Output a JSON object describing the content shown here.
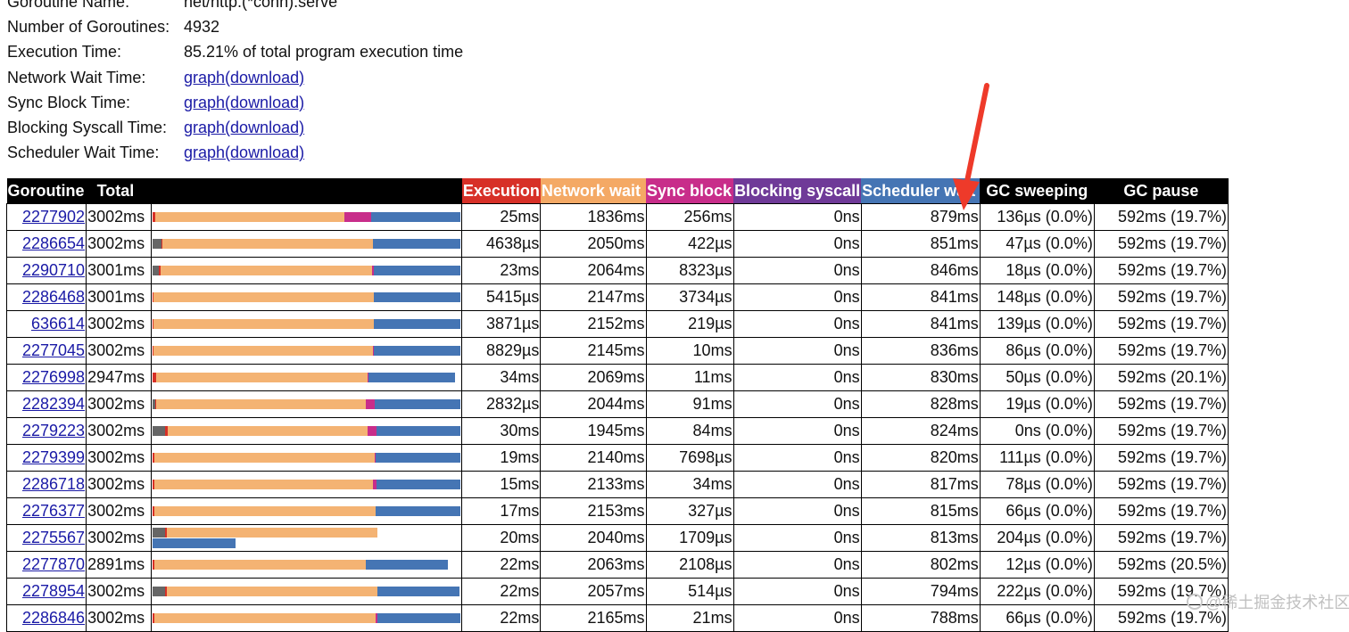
{
  "info": {
    "rows": [
      {
        "label": "Goroutine Name:",
        "value": "net/http.(*conn).serve",
        "link": false
      },
      {
        "label": "Number of Goroutines:",
        "value": "4932",
        "link": false
      },
      {
        "label": "Execution Time:",
        "value": "85.21% of total program execution time",
        "link": false
      },
      {
        "label": "Network Wait Time:",
        "graph": "graph",
        "download": "(download)",
        "link": true
      },
      {
        "label": "Sync Block Time:",
        "graph": "graph",
        "download": "(download)",
        "link": true
      },
      {
        "label": "Blocking Syscall Time:",
        "graph": "graph",
        "download": "(download)",
        "link": true
      },
      {
        "label": "Scheduler Wait Time:",
        "graph": "graph",
        "download": "(download)",
        "link": true
      }
    ]
  },
  "table": {
    "headers": [
      {
        "label": "Goroutine",
        "bg": "#000000"
      },
      {
        "label": "Total",
        "bg": "#000000"
      },
      {
        "label": "",
        "bg": "#000000"
      },
      {
        "label": "Execution",
        "bg": "#d73027"
      },
      {
        "label": "Network wait",
        "bg": "#f4a965"
      },
      {
        "label": "Sync block",
        "bg": "#c82d8a"
      },
      {
        "label": "Blocking syscall",
        "bg": "#6f3a98"
      },
      {
        "label": "Scheduler wait",
        "bg": "#4575b4"
      },
      {
        "label": "GC sweeping",
        "bg": "#000000"
      },
      {
        "label": "GC pause",
        "bg": "#000000"
      }
    ],
    "colors": {
      "gc": "#666666",
      "exec": "#d73027",
      "net": "#f4b373",
      "sync": "#c82d8a",
      "sched": "#4575b4"
    },
    "rows": [
      {
        "id": "2277902",
        "total": "3002ms",
        "exec": "25ms",
        "net": "1836ms",
        "sync": "256ms",
        "syscall": "0ns",
        "sched": "879ms",
        "sweep": "136µs (0.0%)",
        "pause": "592ms (19.7%)",
        "bar": [
          {
            "t": "exec",
            "w": 3
          },
          {
            "t": "net",
            "w": 212
          },
          {
            "t": "sync",
            "w": 30
          },
          {
            "t": "sched",
            "w": 100
          }
        ]
      },
      {
        "id": "2286654",
        "total": "3002ms",
        "exec": "4638µs",
        "net": "2050ms",
        "sync": "422µs",
        "syscall": "0ns",
        "sched": "851ms",
        "sweep": "47µs (0.0%)",
        "pause": "592ms (19.7%)",
        "bar": [
          {
            "t": "gc",
            "w": 10
          },
          {
            "t": "exec",
            "w": 1
          },
          {
            "t": "net",
            "w": 236
          },
          {
            "t": "sched",
            "w": 98
          }
        ]
      },
      {
        "id": "2290710",
        "total": "3001ms",
        "exec": "23ms",
        "net": "2064ms",
        "sync": "8323µs",
        "syscall": "0ns",
        "sched": "846ms",
        "sweep": "18µs (0.0%)",
        "pause": "592ms (19.7%)",
        "bar": [
          {
            "t": "gc",
            "w": 7
          },
          {
            "t": "exec",
            "w": 2
          },
          {
            "t": "net",
            "w": 237
          },
          {
            "t": "sync",
            "w": 2
          },
          {
            "t": "sched",
            "w": 97
          }
        ]
      },
      {
        "id": "2286468",
        "total": "3001ms",
        "exec": "5415µs",
        "net": "2147ms",
        "sync": "3734µs",
        "syscall": "0ns",
        "sched": "841ms",
        "sweep": "148µs (0.0%)",
        "pause": "592ms (19.7%)",
        "bar": [
          {
            "t": "exec",
            "w": 1
          },
          {
            "t": "net",
            "w": 247
          },
          {
            "t": "sched",
            "w": 97
          }
        ]
      },
      {
        "id": "636614",
        "total": "3002ms",
        "exec": "3871µs",
        "net": "2152ms",
        "sync": "219µs",
        "syscall": "0ns",
        "sched": "841ms",
        "sweep": "139µs (0.0%)",
        "pause": "592ms (19.7%)",
        "bar": [
          {
            "t": "exec",
            "w": 1
          },
          {
            "t": "net",
            "w": 247
          },
          {
            "t": "sched",
            "w": 97
          }
        ]
      },
      {
        "id": "2277045",
        "total": "3002ms",
        "exec": "8829µs",
        "net": "2145ms",
        "sync": "10ms",
        "syscall": "0ns",
        "sched": "836ms",
        "sweep": "86µs (0.0%)",
        "pause": "592ms (19.7%)",
        "bar": [
          {
            "t": "exec",
            "w": 1
          },
          {
            "t": "net",
            "w": 246
          },
          {
            "t": "sync",
            "w": 1
          },
          {
            "t": "sched",
            "w": 97
          }
        ]
      },
      {
        "id": "2276998",
        "total": "2947ms",
        "exec": "34ms",
        "net": "2069ms",
        "sync": "11ms",
        "syscall": "0ns",
        "sched": "830ms",
        "sweep": "50µs (0.0%)",
        "pause": "592ms (20.1%)",
        "bar": [
          {
            "t": "exec",
            "w": 4
          },
          {
            "t": "net",
            "w": 237
          },
          {
            "t": "sync",
            "w": 1
          },
          {
            "t": "sched",
            "w": 97
          }
        ]
      },
      {
        "id": "2282394",
        "total": "3002ms",
        "exec": "2832µs",
        "net": "2044ms",
        "sync": "91ms",
        "syscall": "0ns",
        "sched": "828ms",
        "sweep": "19µs (0.0%)",
        "pause": "592ms (19.7%)",
        "bar": [
          {
            "t": "gc",
            "w": 3
          },
          {
            "t": "exec",
            "w": 1
          },
          {
            "t": "net",
            "w": 235
          },
          {
            "t": "sync",
            "w": 10
          },
          {
            "t": "sched",
            "w": 96
          }
        ]
      },
      {
        "id": "2279223",
        "total": "3002ms",
        "exec": "30ms",
        "net": "1945ms",
        "sync": "84ms",
        "syscall": "0ns",
        "sched": "824ms",
        "sweep": "0ns (0.0%)",
        "pause": "592ms (19.7%)",
        "bar": [
          {
            "t": "gc",
            "w": 14
          },
          {
            "t": "exec",
            "w": 3
          },
          {
            "t": "net",
            "w": 224
          },
          {
            "t": "sync",
            "w": 10
          },
          {
            "t": "sched",
            "w": 94
          }
        ]
      },
      {
        "id": "2279399",
        "total": "3002ms",
        "exec": "19ms",
        "net": "2140ms",
        "sync": "7698µs",
        "syscall": "0ns",
        "sched": "820ms",
        "sweep": "111µs (0.0%)",
        "pause": "592ms (19.7%)",
        "bar": [
          {
            "t": "exec",
            "w": 2
          },
          {
            "t": "net",
            "w": 247
          },
          {
            "t": "sync",
            "w": 1
          },
          {
            "t": "sched",
            "w": 95
          }
        ]
      },
      {
        "id": "2286718",
        "total": "3002ms",
        "exec": "15ms",
        "net": "2133ms",
        "sync": "34ms",
        "syscall": "0ns",
        "sched": "817ms",
        "sweep": "78µs (0.0%)",
        "pause": "592ms (19.7%)",
        "bar": [
          {
            "t": "exec",
            "w": 2
          },
          {
            "t": "net",
            "w": 245
          },
          {
            "t": "sync",
            "w": 4
          },
          {
            "t": "sched",
            "w": 94
          }
        ]
      },
      {
        "id": "2276377",
        "total": "3002ms",
        "exec": "17ms",
        "net": "2153ms",
        "sync": "327µs",
        "syscall": "0ns",
        "sched": "815ms",
        "sweep": "66µs (0.0%)",
        "pause": "592ms (19.7%)",
        "bar": [
          {
            "t": "exec",
            "w": 2
          },
          {
            "t": "net",
            "w": 248
          },
          {
            "t": "sched",
            "w": 95
          }
        ]
      },
      {
        "id": "2275567",
        "total": "3002ms",
        "exec": "20ms",
        "net": "2040ms",
        "sync": "1709µs",
        "syscall": "0ns",
        "sched": "813ms",
        "sweep": "204µs (0.0%)",
        "pause": "592ms (19.7%)",
        "bar": [
          {
            "t": "gc",
            "w": 14
          },
          {
            "t": "exec",
            "w": 2
          },
          {
            "t": "net",
            "w": 236
          }
        ],
        "bar2": [
          {
            "t": "sched",
            "w": 93
          }
        ]
      },
      {
        "id": "2277870",
        "total": "2891ms",
        "exec": "22ms",
        "net": "2063ms",
        "sync": "2108µs",
        "syscall": "0ns",
        "sched": "802ms",
        "sweep": "12µs (0.0%)",
        "pause": "592ms (20.5%)",
        "bar": [
          {
            "t": "exec",
            "w": 2
          },
          {
            "t": "net",
            "w": 237
          },
          {
            "t": "sched",
            "w": 92
          }
        ]
      },
      {
        "id": "2278954",
        "total": "3002ms",
        "exec": "22ms",
        "net": "2057ms",
        "sync": "514µs",
        "syscall": "0ns",
        "sched": "794ms",
        "sweep": "222µs (0.0%)",
        "pause": "592ms (19.7%)",
        "bar": [
          {
            "t": "gc",
            "w": 14
          },
          {
            "t": "exec",
            "w": 2
          },
          {
            "t": "net",
            "w": 236
          },
          {
            "t": "sched",
            "w": 92
          }
        ]
      },
      {
        "id": "2286846",
        "total": "3002ms",
        "exec": "22ms",
        "net": "2165ms",
        "sync": "21ms",
        "syscall": "0ns",
        "sched": "788ms",
        "sweep": "66µs (0.0%)",
        "pause": "592ms (19.7%)",
        "bar": [
          {
            "t": "exec",
            "w": 2
          },
          {
            "t": "net",
            "w": 248
          },
          {
            "t": "sync",
            "w": 2
          },
          {
            "t": "sched",
            "w": 93
          }
        ]
      }
    ]
  },
  "watermark": "@稀土掘金技术社区"
}
